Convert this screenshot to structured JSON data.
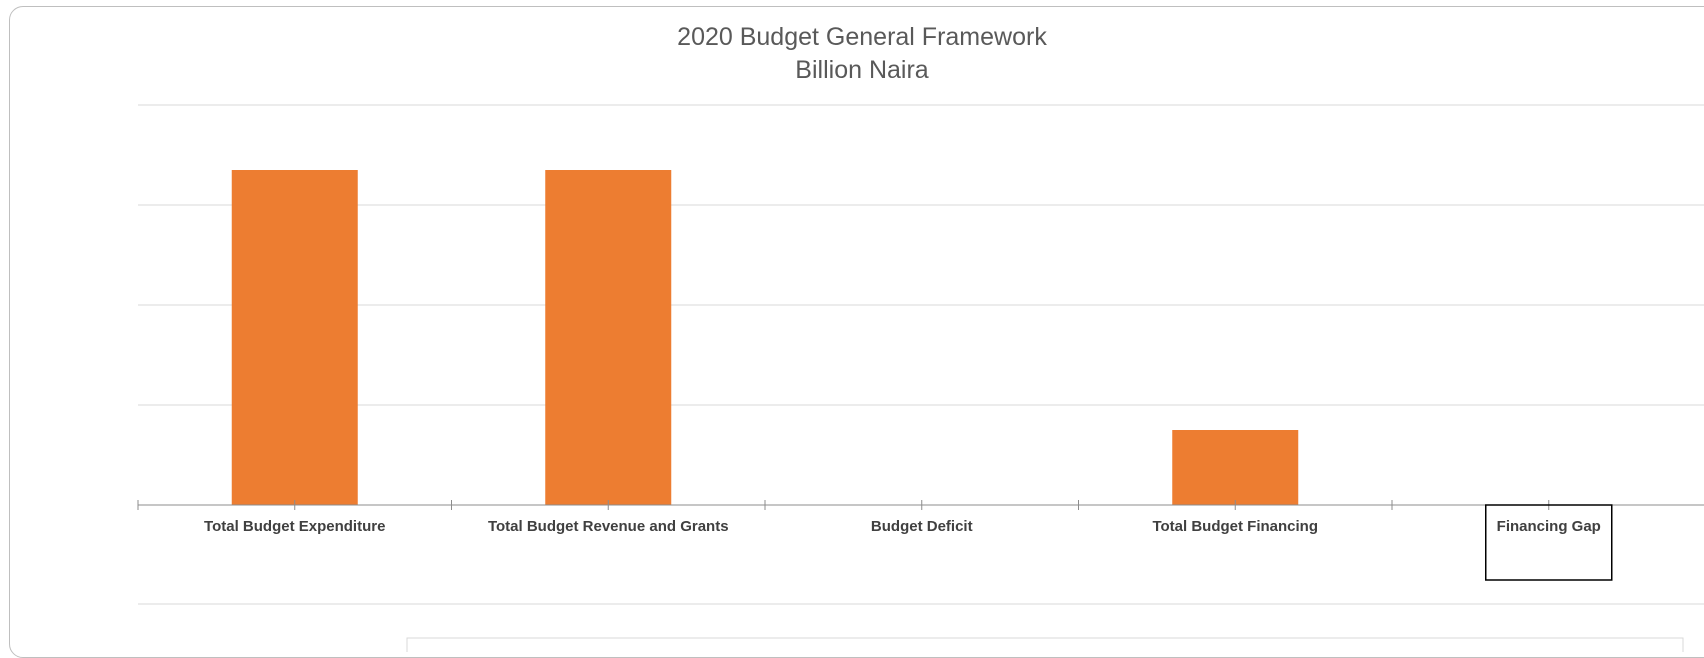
{
  "chart_data": {
    "type": "bar",
    "title": "2020 Budget General Framework",
    "subtitle": "Billion Naira",
    "categories": [
      "Total Budget Expenditure",
      "Total Budget Revenue and Grants",
      "Budget Deficit",
      "Total Budget Financing",
      "Financing Gap"
    ],
    "values": [
      335,
      335,
      0,
      75,
      0
    ],
    "ylim": [
      0,
      400
    ],
    "grid": true,
    "legend": "none",
    "highlighted_category": "Financing Gap",
    "colors": {
      "bar": "#ED7D31",
      "grid": "#d9d9d9",
      "axis": "#8c8c8c",
      "title": "#595959",
      "label": "#404040",
      "highlight_box": "#000000"
    }
  }
}
